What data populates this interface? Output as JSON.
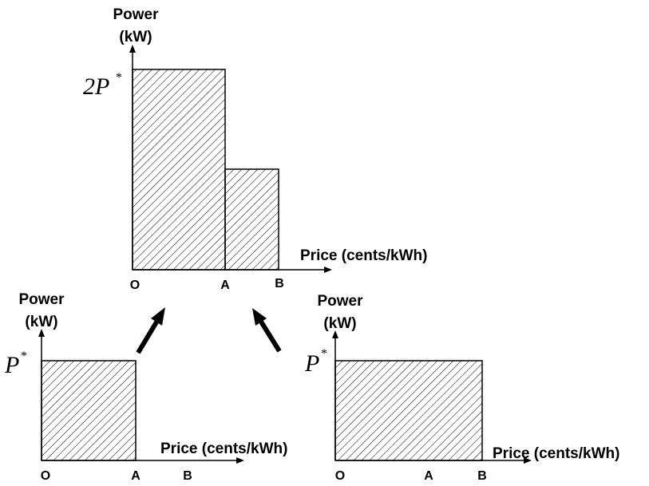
{
  "diagram": {
    "top_chart": {
      "y_label_line1": "Power",
      "y_label_line2": "(kW)",
      "y_value_main": "2P",
      "y_value_sup": "*",
      "x_label": "Price (cents/kWh)",
      "ticks": [
        "O",
        "A",
        "B"
      ]
    },
    "left_chart": {
      "y_label_line1": "Power",
      "y_label_line2": "(kW)",
      "y_value_main": "P",
      "y_value_sup": "*",
      "x_label": "Price (cents/kWh)",
      "ticks": [
        "O",
        "A",
        "B"
      ]
    },
    "right_chart": {
      "y_label_line1": "Power",
      "y_label_line2": "(kW)",
      "y_value_main": "P",
      "y_value_sup": "*",
      "x_label": "Price (cents/kWh)",
      "ticks": [
        "O",
        "A",
        "B"
      ]
    }
  }
}
